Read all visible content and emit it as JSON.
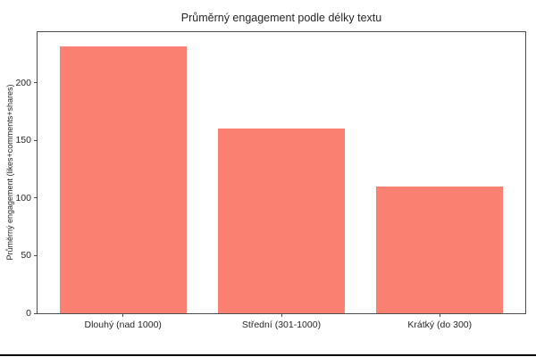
{
  "chart_data": {
    "type": "bar",
    "title": "Průměrný engagement podle délky textu",
    "xlabel": "",
    "ylabel": "Průměrný engagement (likes+comments+shares)",
    "categories": [
      "Dlouhý (nad 1000)",
      "Střední (301-1000)",
      "Krátký (do 300)"
    ],
    "values": [
      232,
      160,
      110
    ],
    "yticks": [
      0,
      50,
      100,
      150,
      200
    ],
    "ylim": [
      0,
      244
    ],
    "grid": false,
    "legend": "none",
    "bar_color": "#FA8072",
    "axis_color": "#4d4d4d",
    "text_color": "#262626",
    "plot_background": "#ffffff",
    "figure_background": "#ffffff",
    "bottom_edge_color": "#000000"
  }
}
